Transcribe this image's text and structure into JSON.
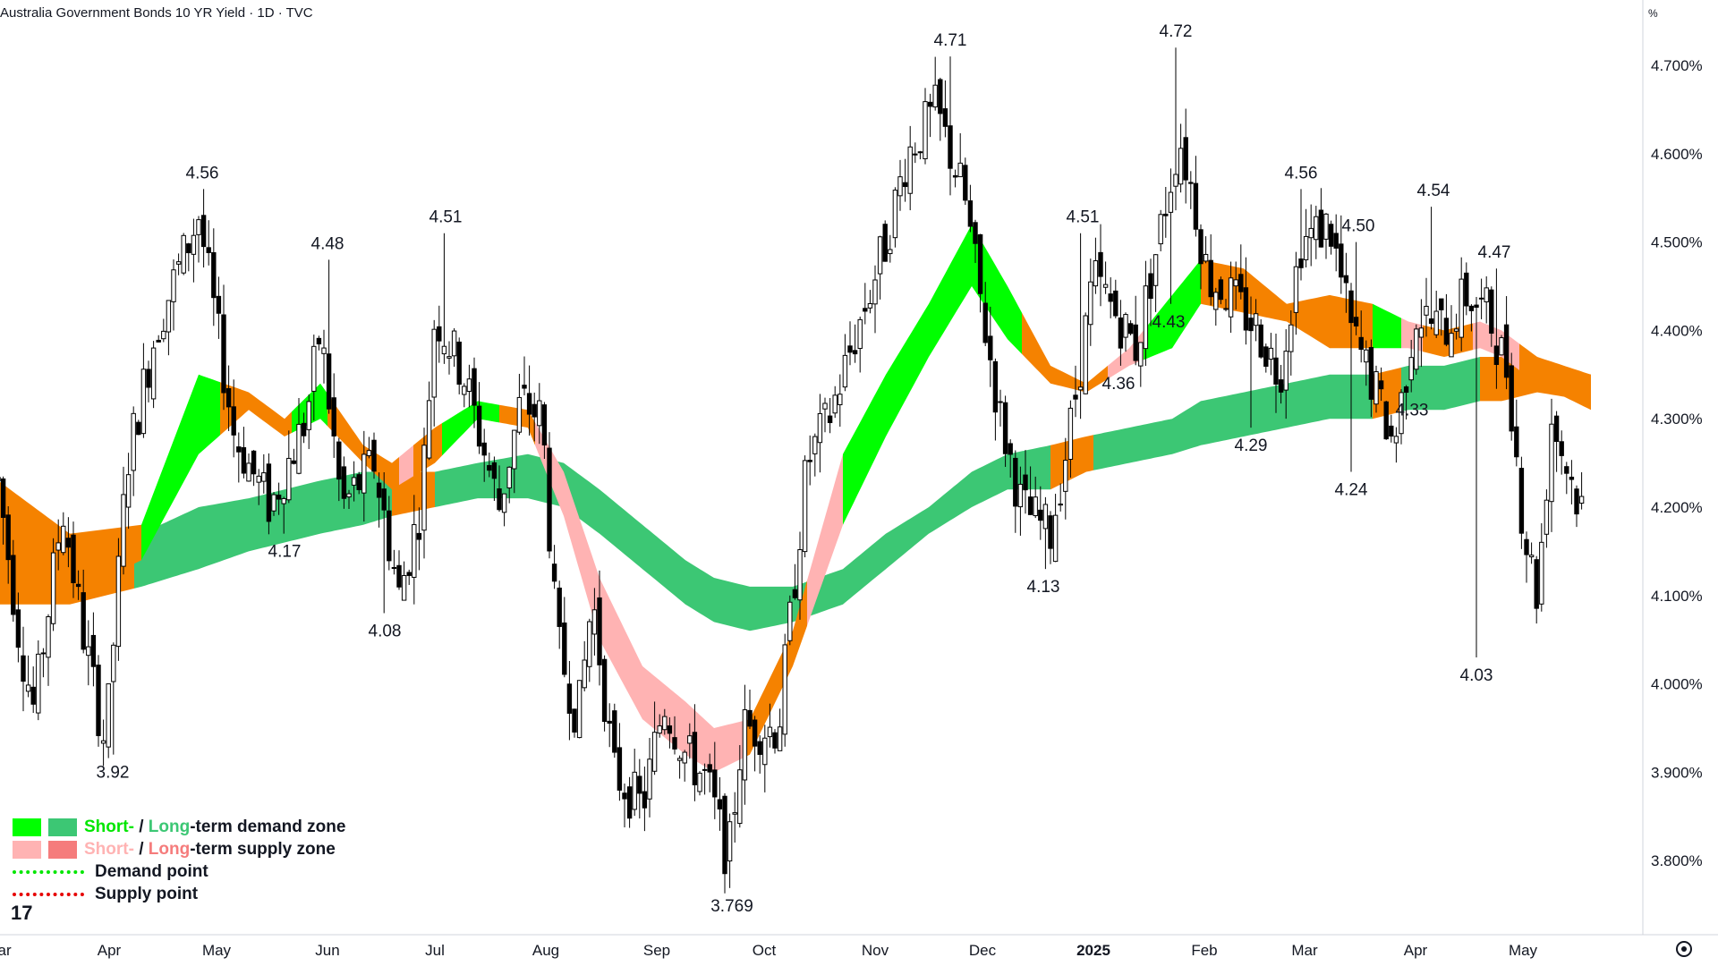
{
  "header": {
    "title": "Australia Government Bonds 10 YR Yield · 1D · TVC"
  },
  "price_axis": {
    "unit": "%"
  },
  "legend": {
    "demand_short": "Short-",
    "demand_sep": " / ",
    "demand_long": "Long",
    "demand_rest": "-term demand zone",
    "supply_short": "Short-",
    "supply_sep": " / ",
    "supply_long": "Long",
    "supply_rest": "-term supply zone",
    "demand_point": "Demand point",
    "supply_point": "Supply point"
  },
  "logo_text": "17",
  "colors": {
    "short_demand": "#00ff00",
    "long_demand": "#3cc774",
    "short_supply": "#ffb3b3",
    "long_supply": "#f57c7c",
    "transition": "#f58200",
    "demand_point": "#00e600",
    "supply_point": "#e60000",
    "candle": "#000000"
  },
  "chart_data": {
    "type": "candlestick",
    "title": "Australia Government Bonds 10 YR Yield · 1D · TVC",
    "y_unit": "%",
    "ylim": [
      3.715,
      4.795
    ],
    "y_ticks": [
      "4.700%",
      "4.600%",
      "4.500%",
      "4.400%",
      "4.300%",
      "4.200%",
      "4.100%",
      "4.000%",
      "3.900%",
      "3.800%"
    ],
    "x_ticks": [
      "Mar",
      "Apr",
      "May",
      "Jun",
      "Jul",
      "Aug",
      "Sep",
      "Oct",
      "Nov",
      "Dec",
      "2025",
      "Feb",
      "Mar",
      "Apr",
      "May"
    ],
    "x_range_days": [
      0,
      445
    ],
    "price_path": [
      [
        0,
        4.23
      ],
      [
        6,
        4.05
      ],
      [
        10,
        3.97
      ],
      [
        18,
        4.2
      ],
      [
        24,
        4.05
      ],
      [
        30,
        3.93
      ],
      [
        36,
        4.25
      ],
      [
        44,
        4.4
      ],
      [
        56,
        4.53
      ],
      [
        66,
        4.28
      ],
      [
        76,
        4.2
      ],
      [
        86,
        4.3
      ],
      [
        90,
        4.4
      ],
      [
        96,
        4.2
      ],
      [
        105,
        4.25
      ],
      [
        112,
        4.1
      ],
      [
        118,
        4.2
      ],
      [
        122,
        4.42
      ],
      [
        130,
        4.35
      ],
      [
        140,
        4.2
      ],
      [
        146,
        4.32
      ],
      [
        152,
        4.3
      ],
      [
        156,
        4.05
      ],
      [
        162,
        3.96
      ],
      [
        166,
        4.1
      ],
      [
        172,
        3.9
      ],
      [
        180,
        3.86
      ],
      [
        186,
        3.98
      ],
      [
        192,
        3.92
      ],
      [
        198,
        3.89
      ],
      [
        204,
        3.8
      ],
      [
        208,
        3.95
      ],
      [
        218,
        3.95
      ],
      [
        226,
        4.25
      ],
      [
        232,
        4.3
      ],
      [
        240,
        4.4
      ],
      [
        248,
        4.5
      ],
      [
        254,
        4.6
      ],
      [
        262,
        4.65
      ],
      [
        270,
        4.55
      ],
      [
        275,
        4.42
      ],
      [
        280,
        4.3
      ],
      [
        286,
        4.2
      ],
      [
        294,
        4.17
      ],
      [
        300,
        4.3
      ],
      [
        306,
        4.46
      ],
      [
        312,
        4.42
      ],
      [
        318,
        4.38
      ],
      [
        324,
        4.5
      ],
      [
        330,
        4.62
      ],
      [
        334,
        4.55
      ],
      [
        338,
        4.46
      ],
      [
        344,
        4.44
      ],
      [
        352,
        4.4
      ],
      [
        358,
        4.35
      ],
      [
        364,
        4.5
      ],
      [
        372,
        4.52
      ],
      [
        378,
        4.4
      ],
      [
        384,
        4.34
      ],
      [
        390,
        4.27
      ],
      [
        396,
        4.42
      ],
      [
        404,
        4.4
      ],
      [
        410,
        4.44
      ],
      [
        416,
        4.42
      ],
      [
        422,
        4.35
      ],
      [
        426,
        4.18
      ],
      [
        430,
        4.1
      ],
      [
        434,
        4.3
      ],
      [
        438,
        4.25
      ],
      [
        442,
        4.2
      ],
      [
        445,
        4.2
      ]
    ],
    "short_band_upper": [
      [
        0,
        4.23
      ],
      [
        20,
        4.17
      ],
      [
        40,
        4.18
      ],
      [
        56,
        4.35
      ],
      [
        70,
        4.33
      ],
      [
        80,
        4.3
      ],
      [
        90,
        4.34
      ],
      [
        102,
        4.27
      ],
      [
        110,
        4.25
      ],
      [
        122,
        4.29
      ],
      [
        134,
        4.32
      ],
      [
        148,
        4.31
      ],
      [
        158,
        4.24
      ],
      [
        168,
        4.12
      ],
      [
        180,
        4.02
      ],
      [
        192,
        3.98
      ],
      [
        200,
        3.95
      ],
      [
        210,
        3.96
      ],
      [
        222,
        4.06
      ],
      [
        236,
        4.26
      ],
      [
        248,
        4.35
      ],
      [
        260,
        4.43
      ],
      [
        272,
        4.52
      ],
      [
        282,
        4.45
      ],
      [
        294,
        4.36
      ],
      [
        304,
        4.34
      ],
      [
        316,
        4.38
      ],
      [
        328,
        4.44
      ],
      [
        336,
        4.48
      ],
      [
        348,
        4.47
      ],
      [
        360,
        4.43
      ],
      [
        372,
        4.44
      ],
      [
        384,
        4.43
      ],
      [
        394,
        4.41
      ],
      [
        404,
        4.4
      ],
      [
        414,
        4.41
      ],
      [
        420,
        4.4
      ],
      [
        430,
        4.37
      ],
      [
        445,
        4.35
      ]
    ],
    "short_band_lower": [
      [
        0,
        4.1
      ],
      [
        20,
        4.1
      ],
      [
        40,
        4.14
      ],
      [
        56,
        4.26
      ],
      [
        70,
        4.31
      ],
      [
        80,
        4.28
      ],
      [
        90,
        4.3
      ],
      [
        102,
        4.25
      ],
      [
        110,
        4.22
      ],
      [
        122,
        4.25
      ],
      [
        134,
        4.3
      ],
      [
        148,
        4.29
      ],
      [
        158,
        4.19
      ],
      [
        168,
        4.05
      ],
      [
        180,
        3.96
      ],
      [
        192,
        3.92
      ],
      [
        200,
        3.9
      ],
      [
        210,
        3.92
      ],
      [
        222,
        4.02
      ],
      [
        236,
        4.18
      ],
      [
        248,
        4.28
      ],
      [
        260,
        4.37
      ],
      [
        272,
        4.45
      ],
      [
        282,
        4.39
      ],
      [
        294,
        4.34
      ],
      [
        304,
        4.33
      ],
      [
        316,
        4.36
      ],
      [
        328,
        4.38
      ],
      [
        336,
        4.43
      ],
      [
        348,
        4.42
      ],
      [
        360,
        4.41
      ],
      [
        372,
        4.38
      ],
      [
        384,
        4.38
      ],
      [
        394,
        4.38
      ],
      [
        404,
        4.37
      ],
      [
        414,
        4.38
      ],
      [
        420,
        4.37
      ],
      [
        430,
        4.34
      ],
      [
        445,
        4.31
      ]
    ],
    "long_band_upper": [
      [
        0,
        4.22
      ],
      [
        20,
        4.16
      ],
      [
        40,
        4.17
      ],
      [
        56,
        4.2
      ],
      [
        70,
        4.21
      ],
      [
        80,
        4.22
      ],
      [
        90,
        4.23
      ],
      [
        102,
        4.24
      ],
      [
        110,
        4.24
      ],
      [
        122,
        4.24
      ],
      [
        134,
        4.25
      ],
      [
        148,
        4.26
      ],
      [
        158,
        4.25
      ],
      [
        168,
        4.22
      ],
      [
        180,
        4.18
      ],
      [
        192,
        4.14
      ],
      [
        200,
        4.12
      ],
      [
        210,
        4.11
      ],
      [
        222,
        4.11
      ],
      [
        236,
        4.13
      ],
      [
        248,
        4.17
      ],
      [
        260,
        4.2
      ],
      [
        272,
        4.24
      ],
      [
        282,
        4.26
      ],
      [
        294,
        4.27
      ],
      [
        304,
        4.28
      ],
      [
        316,
        4.29
      ],
      [
        328,
        4.3
      ],
      [
        336,
        4.32
      ],
      [
        348,
        4.33
      ],
      [
        360,
        4.34
      ],
      [
        372,
        4.35
      ],
      [
        384,
        4.35
      ],
      [
        394,
        4.36
      ],
      [
        404,
        4.36
      ],
      [
        414,
        4.37
      ],
      [
        420,
        4.37
      ],
      [
        430,
        4.36
      ],
      [
        445,
        4.35
      ]
    ],
    "long_band_lower": [
      [
        0,
        4.09
      ],
      [
        20,
        4.09
      ],
      [
        40,
        4.11
      ],
      [
        56,
        4.13
      ],
      [
        70,
        4.15
      ],
      [
        80,
        4.16
      ],
      [
        90,
        4.17
      ],
      [
        102,
        4.18
      ],
      [
        110,
        4.19
      ],
      [
        122,
        4.2
      ],
      [
        134,
        4.21
      ],
      [
        148,
        4.21
      ],
      [
        158,
        4.2
      ],
      [
        168,
        4.17
      ],
      [
        180,
        4.13
      ],
      [
        192,
        4.09
      ],
      [
        200,
        4.07
      ],
      [
        210,
        4.06
      ],
      [
        222,
        4.07
      ],
      [
        236,
        4.09
      ],
      [
        248,
        4.13
      ],
      [
        260,
        4.17
      ],
      [
        272,
        4.2
      ],
      [
        282,
        4.22
      ],
      [
        294,
        4.22
      ],
      [
        304,
        4.24
      ],
      [
        316,
        4.25
      ],
      [
        328,
        4.26
      ],
      [
        336,
        4.27
      ],
      [
        348,
        4.28
      ],
      [
        360,
        4.29
      ],
      [
        372,
        4.3
      ],
      [
        384,
        4.3
      ],
      [
        394,
        4.31
      ],
      [
        404,
        4.31
      ],
      [
        414,
        4.32
      ],
      [
        420,
        4.32
      ],
      [
        430,
        4.33
      ],
      [
        445,
        4.32
      ]
    ],
    "short_band_segments": [
      {
        "from": 0,
        "to": 40,
        "zone": "transition"
      },
      {
        "from": 40,
        "to": 62,
        "zone": "short_demand"
      },
      {
        "from": 62,
        "to": 82,
        "zone": "transition"
      },
      {
        "from": 82,
        "to": 92,
        "zone": "short_demand"
      },
      {
        "from": 92,
        "to": 112,
        "zone": "transition"
      },
      {
        "from": 112,
        "to": 116,
        "zone": "short_supply"
      },
      {
        "from": 116,
        "to": 124,
        "zone": "transition"
      },
      {
        "from": 124,
        "to": 140,
        "zone": "short_demand"
      },
      {
        "from": 140,
        "to": 150,
        "zone": "transition"
      },
      {
        "from": 150,
        "to": 208,
        "zone": "short_supply"
      },
      {
        "from": 208,
        "to": 226,
        "zone": "transition"
      },
      {
        "from": 226,
        "to": 236,
        "zone": "short_supply"
      },
      {
        "from": 236,
        "to": 286,
        "zone": "short_demand"
      },
      {
        "from": 286,
        "to": 310,
        "zone": "transition"
      },
      {
        "from": 310,
        "to": 320,
        "zone": "short_supply"
      },
      {
        "from": 320,
        "to": 336,
        "zone": "short_demand"
      },
      {
        "from": 336,
        "to": 384,
        "zone": "transition"
      },
      {
        "from": 384,
        "to": 392,
        "zone": "short_demand"
      },
      {
        "from": 392,
        "to": 398,
        "zone": "short_supply"
      },
      {
        "from": 398,
        "to": 412,
        "zone": "transition"
      },
      {
        "from": 412,
        "to": 425,
        "zone": "short_supply"
      },
      {
        "from": 425,
        "to": 445,
        "zone": "transition"
      }
    ],
    "long_band_segments": [
      {
        "from": 0,
        "to": 38,
        "zone": "transition"
      },
      {
        "from": 38,
        "to": 110,
        "zone": "long_demand"
      },
      {
        "from": 110,
        "to": 122,
        "zone": "transition"
      },
      {
        "from": 122,
        "to": 294,
        "zone": "long_demand"
      },
      {
        "from": 294,
        "to": 306,
        "zone": "transition"
      },
      {
        "from": 306,
        "to": 384,
        "zone": "long_demand"
      },
      {
        "from": 384,
        "to": 392,
        "zone": "transition"
      },
      {
        "from": 392,
        "to": 414,
        "zone": "long_demand"
      },
      {
        "from": 414,
        "to": 445,
        "zone": "transition"
      }
    ],
    "annotations": [
      {
        "x": 32,
        "y": 3.92,
        "label": "3.92",
        "pos": "below"
      },
      {
        "x": 57,
        "y": 4.56,
        "label": "4.56",
        "pos": "above"
      },
      {
        "x": 80,
        "y": 4.17,
        "label": "4.17",
        "pos": "below"
      },
      {
        "x": 92,
        "y": 4.48,
        "label": "4.48",
        "pos": "above"
      },
      {
        "x": 108,
        "y": 4.08,
        "label": "4.08",
        "pos": "below"
      },
      {
        "x": 125,
        "y": 4.51,
        "label": "4.51",
        "pos": "above"
      },
      {
        "x": 205,
        "y": 3.769,
        "label": "3.769",
        "pos": "below"
      },
      {
        "x": 266,
        "y": 4.71,
        "label": "4.71",
        "pos": "above"
      },
      {
        "x": 292,
        "y": 4.13,
        "label": "4.13",
        "pos": "below"
      },
      {
        "x": 303,
        "y": 4.51,
        "label": "4.51",
        "pos": "above"
      },
      {
        "x": 313,
        "y": 4.36,
        "label": "4.36",
        "pos": "below"
      },
      {
        "x": 327,
        "y": 4.43,
        "label": "4.43",
        "pos": "below"
      },
      {
        "x": 329,
        "y": 4.72,
        "label": "4.72",
        "pos": "above"
      },
      {
        "x": 350,
        "y": 4.29,
        "label": "4.29",
        "pos": "below"
      },
      {
        "x": 364,
        "y": 4.56,
        "label": "4.56",
        "pos": "above"
      },
      {
        "x": 378,
        "y": 4.24,
        "label": "4.24",
        "pos": "below"
      },
      {
        "x": 380,
        "y": 4.5,
        "label": "4.50",
        "pos": "above"
      },
      {
        "x": 395,
        "y": 4.33,
        "label": "4.33",
        "pos": "below"
      },
      {
        "x": 401,
        "y": 4.54,
        "label": "4.54",
        "pos": "above"
      },
      {
        "x": 413,
        "y": 4.03,
        "label": "4.03",
        "pos": "below"
      },
      {
        "x": 418,
        "y": 4.47,
        "label": "4.47",
        "pos": "above"
      }
    ]
  }
}
